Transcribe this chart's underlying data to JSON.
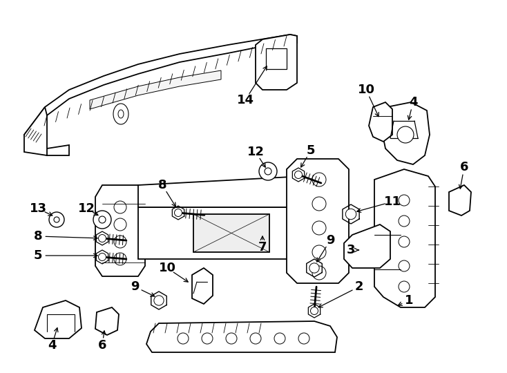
{
  "background_color": "#ffffff",
  "line_color": "#000000",
  "lw": 1.3
}
